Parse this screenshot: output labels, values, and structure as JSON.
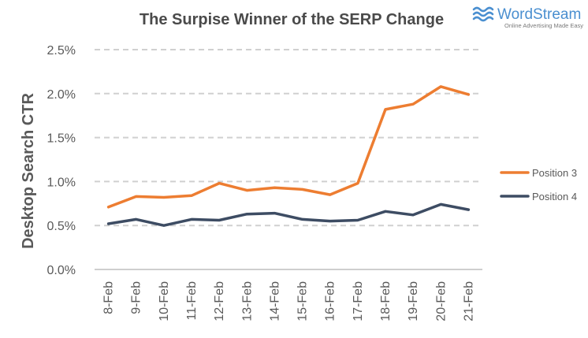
{
  "brand": {
    "name": "WordStream",
    "tagline": "Online Advertising Made Easy",
    "logo_icon": "wave-logo-icon",
    "color": "#4a8fd0"
  },
  "chart_data": {
    "type": "line",
    "title": "The Surpise Winner of the SERP Change",
    "xlabel": "",
    "ylabel": "Desktop Search CTR",
    "categories": [
      "8-Feb",
      "9-Feb",
      "10-Feb",
      "11-Feb",
      "12-Feb",
      "13-Feb",
      "14-Feb",
      "15-Feb",
      "16-Feb",
      "17-Feb",
      "18-Feb",
      "19-Feb",
      "20-Feb",
      "21-Feb"
    ],
    "y_ticks": [
      "0.0%",
      "0.5%",
      "1.0%",
      "1.5%",
      "2.0%",
      "2.5%"
    ],
    "ylim": [
      0,
      2.5
    ],
    "y_unit": "%",
    "grid": true,
    "legend_position": "right",
    "series": [
      {
        "name": "Position 3",
        "color": "#ed7d31",
        "values": [
          0.71,
          0.83,
          0.82,
          0.84,
          0.98,
          0.9,
          0.93,
          0.91,
          0.85,
          0.98,
          1.82,
          1.88,
          2.08,
          1.99
        ]
      },
      {
        "name": "Position 4",
        "color": "#3d4c63",
        "values": [
          0.52,
          0.57,
          0.5,
          0.57,
          0.56,
          0.63,
          0.64,
          0.57,
          0.55,
          0.56,
          0.66,
          0.62,
          0.74,
          0.68
        ]
      }
    ]
  }
}
